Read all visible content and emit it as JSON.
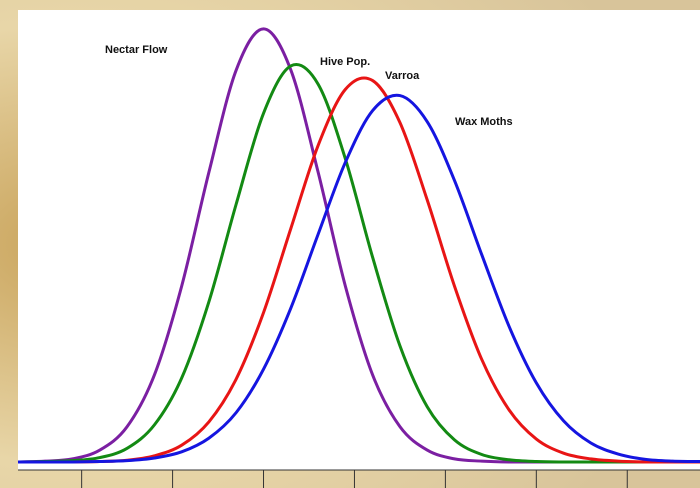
{
  "chart_data": {
    "type": "line",
    "annotations": [
      "Nectar Flow",
      "Hive Pop.",
      "Varroa",
      "Wax  Moths"
    ],
    "x": [
      0.3,
      0.6,
      0.9,
      1.2,
      1.5,
      1.8,
      2.1,
      2.4,
      2.7,
      3.0,
      3.3,
      3.6,
      3.9,
      4.2,
      4.5,
      4.8,
      5.1,
      5.4,
      5.7,
      6.0,
      6.3,
      6.6,
      6.9,
      7.2,
      7.5,
      7.8
    ],
    "series": [
      {
        "name": "Nectar Flow",
        "color": "#7b1fa2",
        "values": [
          0,
          0.2,
          0.7,
          2.7,
          8.0,
          19.7,
          39.8,
          65.6,
          88.7,
          98,
          88.7,
          65.6,
          39.8,
          19.7,
          8.0,
          2.7,
          0.7,
          0.2,
          0,
          0,
          0,
          0,
          0,
          0,
          0,
          0
        ]
      },
      {
        "name": "Hive Pop.",
        "color": "#138a13",
        "values": [
          0,
          0.1,
          0.3,
          1.0,
          3.1,
          8.4,
          19.0,
          36.3,
          58.4,
          78.9,
          89.6,
          85.5,
          68.6,
          46.3,
          26.3,
          12.5,
          5.0,
          1.7,
          0.5,
          0.1,
          0,
          0,
          0,
          0,
          0,
          0
        ]
      },
      {
        "name": "Varroa",
        "color": "#e81515",
        "values": [
          0,
          0,
          0,
          0.1,
          0.4,
          1.4,
          3.8,
          9.1,
          18.8,
          33.8,
          52.8,
          71.6,
          84.3,
          86.3,
          76.8,
          59.3,
          39.8,
          23.2,
          11.8,
          5.2,
          2.0,
          0.7,
          0.2,
          0,
          0,
          0
        ]
      },
      {
        "name": "Wax  Moths",
        "color": "#1515e0",
        "values": [
          0,
          0,
          0,
          0.1,
          0.3,
          0.9,
          2.3,
          5.4,
          11.2,
          21.0,
          34.8,
          51.5,
          67.8,
          79.5,
          82.9,
          77.0,
          63.7,
          46.9,
          30.7,
          17.9,
          9.3,
          4.3,
          1.8,
          0.6,
          0.2,
          0.1
        ]
      }
    ],
    "xlim": [
      0.3,
      7.8
    ],
    "xticks": [
      1,
      2,
      3,
      4,
      5,
      6,
      7
    ],
    "ylim": [
      0,
      100
    ]
  }
}
